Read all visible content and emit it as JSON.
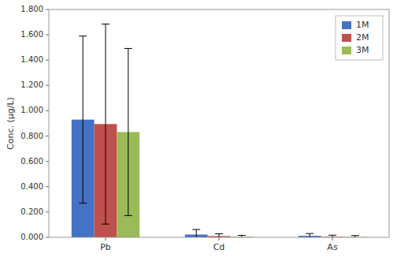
{
  "chart_data": {
    "type": "bar",
    "categories": [
      "Pb",
      "Cd",
      "As"
    ],
    "series": [
      {
        "name": "1M",
        "color": "#4472C4",
        "values": [
          0.93,
          0.022,
          0.012
        ],
        "errors": [
          0.66,
          0.04,
          0.018
        ]
      },
      {
        "name": "2M",
        "color": "#C0504D",
        "values": [
          0.895,
          0.01,
          0.005
        ],
        "errors": [
          0.79,
          0.018,
          0.012
        ]
      },
      {
        "name": "3M",
        "color": "#9BBB59",
        "values": [
          0.832,
          0.006,
          0.004
        ],
        "errors": [
          0.66,
          0.01,
          0.01
        ]
      }
    ],
    "ylabel": "Conc. (μg/L)",
    "ylim": [
      0,
      1.8
    ],
    "yticks": [
      {
        "value": 0.0,
        "label": "0.000"
      },
      {
        "value": 0.2,
        "label": "0.200"
      },
      {
        "value": 0.4,
        "label": "0.400"
      },
      {
        "value": 0.6,
        "label": "0.600"
      },
      {
        "value": 0.8,
        "label": "0.800"
      },
      {
        "value": 1.0,
        "label": "1.000"
      },
      {
        "value": 1.2,
        "label": "1.200"
      },
      {
        "value": 1.4,
        "label": "1.400"
      },
      {
        "value": 1.6,
        "label": "1.600"
      },
      {
        "value": 1.8,
        "label": "1.800"
      }
    ],
    "grid": false,
    "legend": "upper right"
  }
}
